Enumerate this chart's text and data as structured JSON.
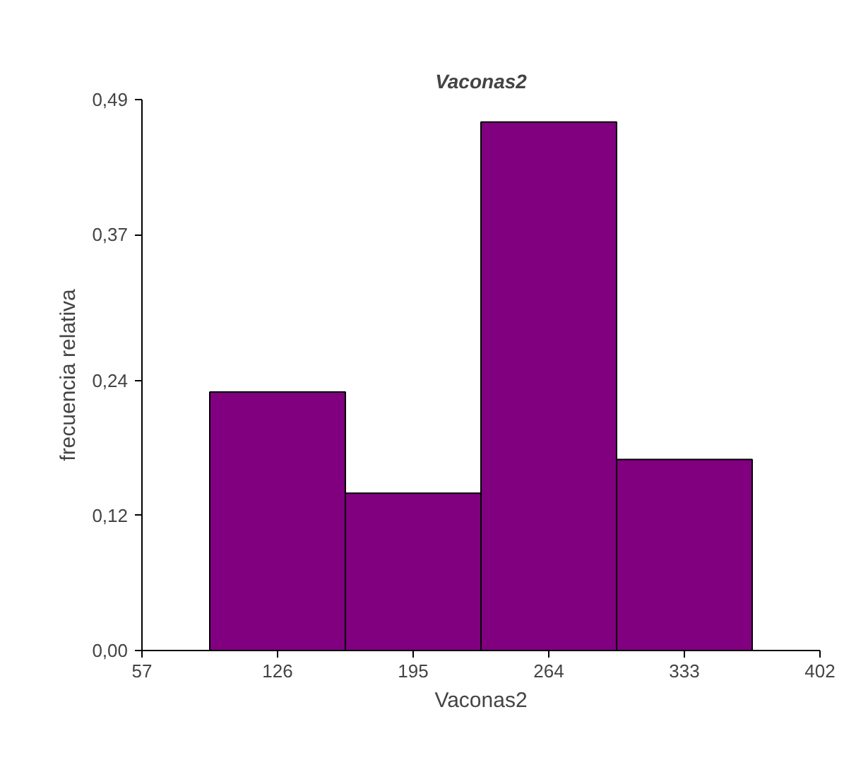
{
  "chart_data": {
    "type": "histogram",
    "title": "Vaconas2",
    "xlabel": "Vaconas2",
    "ylabel": "frecuencia relativa",
    "bins": [
      91.5,
      160.5,
      229.5,
      298.5,
      367.5
    ],
    "values": [
      0.23,
      0.14,
      0.47,
      0.17
    ],
    "color": "#800080",
    "xlim": [
      57,
      402
    ],
    "xticks": [
      57,
      126,
      195,
      264,
      333,
      402
    ],
    "ylim": [
      0,
      0.49
    ],
    "yticks": [
      {
        "value": 0,
        "label": "0,00"
      },
      {
        "value": 0.12,
        "label": "0,12"
      },
      {
        "value": 0.24,
        "label": "0,24"
      },
      {
        "value": 0.37,
        "label": "0,37"
      },
      {
        "value": 0.49,
        "label": "0,49"
      }
    ],
    "grid": false
  }
}
